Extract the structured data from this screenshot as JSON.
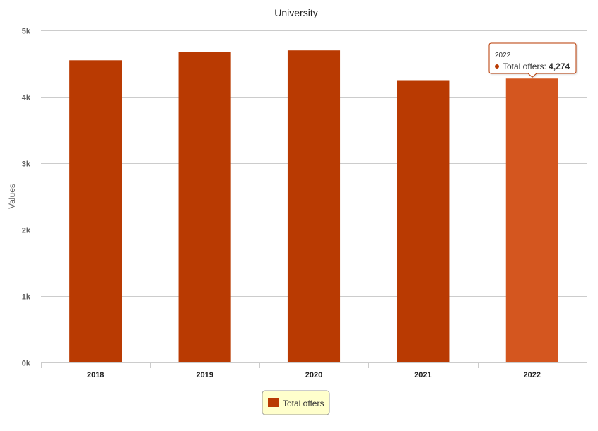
{
  "chart_data": {
    "type": "bar",
    "title": "University",
    "xlabel": "",
    "ylabel": "Values",
    "categories": [
      "2018",
      "2019",
      "2020",
      "2021",
      "2022"
    ],
    "series": [
      {
        "name": "Total offers",
        "values": [
          4550,
          4680,
          4700,
          4250,
          4274
        ]
      }
    ],
    "ylim": [
      0,
      5000
    ],
    "yticks": [
      0,
      1000,
      2000,
      3000,
      4000,
      5000
    ],
    "ytick_labels": [
      "0k",
      "1k",
      "2k",
      "3k",
      "4k",
      "5k"
    ],
    "grid": true,
    "legend": "bottom-center",
    "colors": {
      "bar": "#b93a02",
      "bar_highlight": "#d4561f",
      "grid": "#cccccc",
      "legend_bg": "#ffffcc",
      "tooltip_border": "#b93a02"
    },
    "tooltip": {
      "category": "2022",
      "series": "Total offers",
      "value_label": "4,274"
    }
  }
}
